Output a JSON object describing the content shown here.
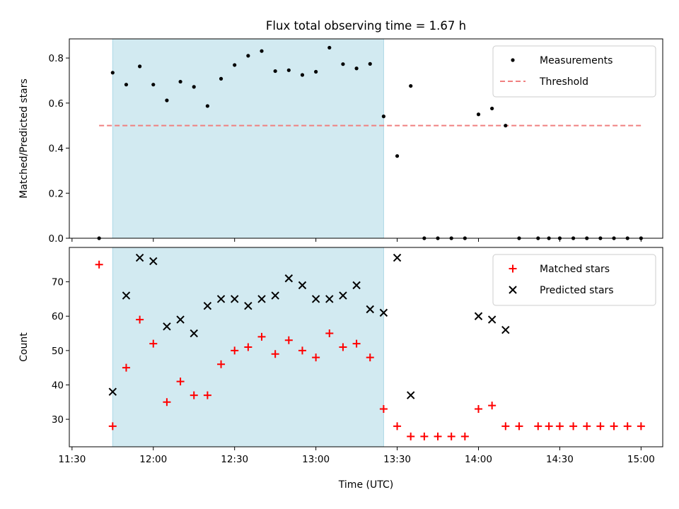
{
  "title": "Flux total observing time = 1.67 h",
  "chart_data": [
    {
      "type": "scatter",
      "panel": "top",
      "ylabel": "Matched/Predicted stars",
      "xlabel": "",
      "ylim": [
        0,
        0.885
      ],
      "yticks": [
        "0.0",
        "0.2",
        "0.4",
        "0.6",
        "0.8"
      ],
      "ytick_values": [
        0,
        0.2,
        0.4,
        0.6,
        0.8
      ],
      "legend_position": "top-right",
      "shaded_interval": [
        "11:45",
        "13:25"
      ],
      "shade_color": "#add8e6",
      "threshold": {
        "name": "Threshold",
        "value": 0.5,
        "x_range": [
          "11:40",
          "15:00"
        ],
        "color": "#f08080"
      },
      "series": [
        {
          "name": "Measurements",
          "color": "#000000",
          "x": [
            "11:40",
            "11:45",
            "11:50",
            "11:55",
            "12:00",
            "12:05",
            "12:10",
            "12:15",
            "12:20",
            "12:25",
            "12:30",
            "12:35",
            "12:40",
            "12:45",
            "12:50",
            "12:55",
            "13:00",
            "13:05",
            "13:10",
            "13:15",
            "13:20",
            "13:25",
            "13:30",
            "13:35",
            "13:40",
            "13:45",
            "13:50",
            "13:55",
            "14:00",
            "14:05",
            "14:10",
            "14:15",
            "14:22",
            "14:26",
            "14:30",
            "14:35",
            "14:40",
            "14:45",
            "14:50",
            "14:55",
            "15:00"
          ],
          "y": [
            0,
            0.735,
            0.682,
            0.763,
            0.682,
            0.612,
            0.695,
            0.672,
            0.587,
            0.708,
            0.769,
            0.81,
            0.831,
            0.742,
            0.746,
            0.725,
            0.739,
            0.846,
            0.773,
            0.754,
            0.774,
            0.541,
            0.365,
            0.676,
            0,
            0,
            0,
            0,
            0.55,
            0.576,
            0.5,
            0,
            0,
            0,
            0,
            0,
            0,
            0,
            0,
            0,
            0
          ]
        }
      ]
    },
    {
      "type": "scatter",
      "panel": "bottom",
      "ylabel": "Count",
      "xlabel": "Time (UTC)",
      "ylim": [
        22,
        80
      ],
      "yticks": [
        "30",
        "40",
        "50",
        "60",
        "70"
      ],
      "ytick_values": [
        30,
        40,
        50,
        60,
        70
      ],
      "xlim": [
        "11:29",
        "15:08"
      ],
      "xticks": [
        "11:30",
        "12:00",
        "12:30",
        "13:00",
        "13:30",
        "14:00",
        "14:30",
        "15:00"
      ],
      "legend_position": "top-right",
      "shaded_interval": [
        "11:45",
        "13:25"
      ],
      "shade_color": "#add8e6",
      "series": [
        {
          "name": "Matched stars",
          "marker": "plus",
          "color": "#ff0000",
          "x": [
            "11:40",
            "11:45",
            "11:50",
            "11:55",
            "12:00",
            "12:05",
            "12:10",
            "12:15",
            "12:20",
            "12:25",
            "12:30",
            "12:35",
            "12:40",
            "12:45",
            "12:50",
            "12:55",
            "13:00",
            "13:05",
            "13:10",
            "13:15",
            "13:20",
            "13:25",
            "13:30",
            "13:35",
            "13:40",
            "13:45",
            "13:50",
            "13:55",
            "14:00",
            "14:05",
            "14:10",
            "14:15",
            "14:22",
            "14:26",
            "14:30",
            "14:35",
            "14:40",
            "14:45",
            "14:50",
            "14:55",
            "15:00"
          ],
          "y": [
            75,
            28,
            45,
            59,
            52,
            35,
            41,
            37,
            37,
            46,
            50,
            51,
            54,
            49,
            53,
            50,
            48,
            55,
            51,
            52,
            48,
            33,
            28,
            25,
            25,
            25,
            25,
            25,
            33,
            34,
            28,
            28,
            28,
            28,
            28,
            28,
            28,
            28,
            28,
            28,
            28
          ]
        },
        {
          "name": "Predicted stars",
          "marker": "x",
          "color": "#000000",
          "x": [
            "11:45",
            "11:50",
            "11:55",
            "12:00",
            "12:05",
            "12:10",
            "12:15",
            "12:20",
            "12:25",
            "12:30",
            "12:35",
            "12:40",
            "12:45",
            "12:50",
            "12:55",
            "13:00",
            "13:05",
            "13:10",
            "13:15",
            "13:20",
            "13:25",
            "13:30",
            "13:35",
            "14:00",
            "14:05",
            "14:10"
          ],
          "y": [
            38,
            66,
            77,
            76,
            57,
            59,
            55,
            63,
            65,
            65,
            63,
            65,
            66,
            71,
            69,
            65,
            65,
            66,
            69,
            62,
            61,
            77,
            37,
            60,
            59,
            56
          ]
        }
      ]
    }
  ]
}
